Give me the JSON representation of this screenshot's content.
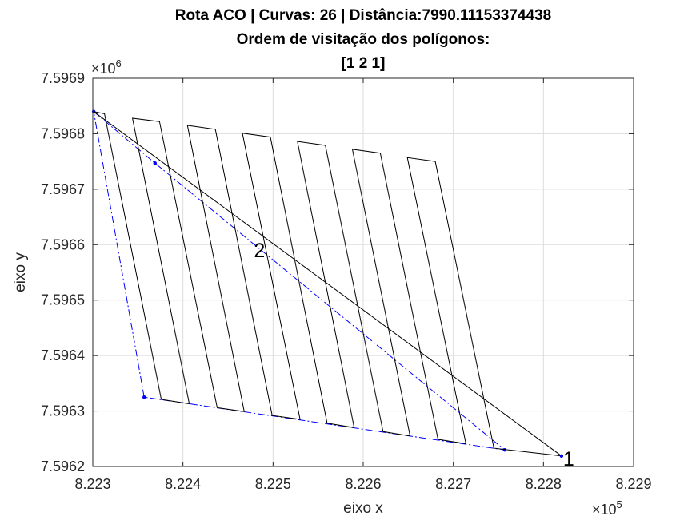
{
  "chart_data": {
    "type": "line",
    "title_lines": [
      "Rota ACO | Curvas: 26 | Distância:7990.11153374438",
      "Ordem de visitação dos polígonos:",
      "[1 2 1]"
    ],
    "xlabel": "eixo x",
    "ylabel": "eixo y",
    "xlim": [
      822300,
      822900
    ],
    "ylim": [
      7596200,
      7596900
    ],
    "x_ticks": [
      822300,
      822400,
      822500,
      822600,
      822700,
      822800,
      822900
    ],
    "x_tick_labels": [
      "8.223",
      "8.224",
      "8.225",
      "8.226",
      "8.227",
      "8.228",
      "8.229"
    ],
    "y_ticks": [
      7596200,
      7596300,
      7596400,
      7596500,
      7596600,
      7596700,
      7596800,
      7596900
    ],
    "y_tick_labels": [
      "7.5962",
      "7.5963",
      "7.5964",
      "7.5965",
      "7.5966",
      "7.5967",
      "7.5968",
      "7.5969"
    ],
    "x_exponent_base": "×10",
    "x_exponent_power": "5",
    "y_exponent_base": "×10",
    "y_exponent_power": "6",
    "grid": true,
    "polygon_boundary": {
      "color": "#0000ff",
      "style": "dash-dot",
      "vertices": [
        [
          822301,
          7596840
        ],
        [
          822369,
          7596747
        ],
        [
          822757,
          7596230
        ],
        [
          822357,
          7596325
        ]
      ]
    },
    "sweep_path": {
      "color": "#000000",
      "points": [
        [
          822820,
          7596219
        ],
        [
          822301,
          7596840
        ],
        [
          822313,
          7596836
        ],
        [
          822376,
          7596321
        ],
        [
          822407,
          7596313
        ],
        [
          822344,
          7596828
        ],
        [
          822374,
          7596822
        ],
        [
          822438,
          7596306
        ],
        [
          822468,
          7596299
        ],
        [
          822405,
          7596815
        ],
        [
          822436,
          7596808
        ],
        [
          822499,
          7596292
        ],
        [
          822530,
          7596285
        ],
        [
          822466,
          7596801
        ],
        [
          822497,
          7596794
        ],
        [
          822560,
          7596278
        ],
        [
          822590,
          7596270
        ],
        [
          822527,
          7596786
        ],
        [
          822558,
          7596779
        ],
        [
          822622,
          7596263
        ],
        [
          822652,
          7596255
        ],
        [
          822588,
          7596772
        ],
        [
          822619,
          7596765
        ],
        [
          822683,
          7596249
        ],
        [
          822714,
          7596241
        ],
        [
          822649,
          7596757
        ],
        [
          822680,
          7596750
        ],
        [
          822745,
          7596233
        ],
        [
          822820,
          7596219
        ]
      ]
    },
    "annotations": [
      {
        "text": "1",
        "x": 822820,
        "y": 7596219
      },
      {
        "text": "2",
        "x": 822477,
        "y": 7596595
      }
    ]
  }
}
